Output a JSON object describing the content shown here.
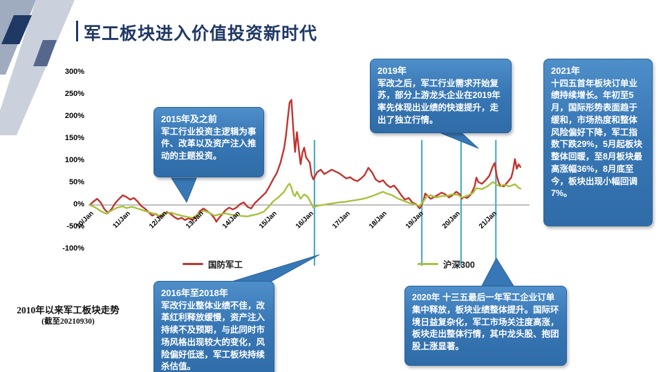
{
  "slide": {
    "title": "军工板块进入价值投资新时代",
    "caption_line1": "2010年以来军工板块走势",
    "caption_line2": "(截至20210930)"
  },
  "colors": {
    "title_navy": "#1F3864",
    "callout_blue": "#3877B5",
    "marker_teal": "#4BACC6",
    "defense_red": "#C3322E",
    "csi300_green": "#A6C13C"
  },
  "callouts": [
    {
      "title": "2015年及之前",
      "body": "军工行业投资主逻辑为事件、改革以及资产注入推动的主题投资。"
    },
    {
      "title": "2019年",
      "body": "军改之后，军工行业需求开始复苏，部分上游龙头企业在2019年率先体现出业绩的快速提升，走出了独立行情。"
    },
    {
      "title": "2021年",
      "body": "十四五首年板块订单业绩持续增长。年初至5月，国际形势表面趋于缓和，市场热度和整体风险偏好下降，军工指数下跌29%，5月起板块整体回暖，至8月板块最高涨幅36%，8月底至今，板块出现小幅回调7%。"
    },
    {
      "title": "2016年至2018年",
      "body": "军改行业整体业绩不佳，改革红利释放缓慢，资产注入持续不及预期，与此同时市场风格出现较大的变化，风险偏好低迷，军工板块持续杀估值。"
    },
    {
      "title": "2020年",
      "body": "十三五最后一年军工企业订单集中释放，板块业绩整体提升。国际环境日益复杂化，军工市场关注度高涨，板块走出整体行情，其中龙头股、抱团股上涨显著。"
    }
  ],
  "chart_data": {
    "type": "line",
    "title": "",
    "xlabel": "",
    "ylabel": "",
    "grid": false,
    "legend_position": "bottom",
    "ylim": [
      -100,
      300
    ],
    "x_range": [
      2010,
      2021.85
    ],
    "y_ticks": [
      {
        "label": "300%",
        "value": 300
      },
      {
        "label": "250%",
        "value": 250
      },
      {
        "label": "200%",
        "value": 200
      },
      {
        "label": "150%",
        "value": 150
      },
      {
        "label": "100%",
        "value": 100
      },
      {
        "label": "50%",
        "value": 50
      },
      {
        "label": "0%",
        "value": 0
      },
      {
        "label": "-50%",
        "value": -50
      },
      {
        "label": "-100%",
        "value": -100
      }
    ],
    "x_ticks": [
      {
        "label": "10/Jan",
        "year": 2010
      },
      {
        "label": "11/Jan",
        "year": 2011
      },
      {
        "label": "12/Jan",
        "year": 2012
      },
      {
        "label": "13/Jan",
        "year": 2013
      },
      {
        "label": "14/Jan",
        "year": 2014
      },
      {
        "label": "15/Jan",
        "year": 2015
      },
      {
        "label": "16/Jan",
        "year": 2016
      },
      {
        "label": "17/Jan",
        "year": 2017
      },
      {
        "label": "18/Jan",
        "year": 2018
      },
      {
        "label": "19/Jan",
        "year": 2019
      },
      {
        "label": "20/Jan",
        "year": 2020
      },
      {
        "label": "21/Jan",
        "year": 2021
      }
    ],
    "event_marker_years": [
      2016.13,
      2019.06,
      2020.13,
      2021.08
    ],
    "marker_color": "#4BACC6",
    "series": [
      {
        "id": "defense",
        "name": "国防军工",
        "color": "#C3322E",
        "points": [
          [
            2010.0,
            0
          ],
          [
            2010.1,
            8
          ],
          [
            2010.2,
            14
          ],
          [
            2010.3,
            5
          ],
          [
            2010.4,
            -10
          ],
          [
            2010.5,
            -18
          ],
          [
            2010.6,
            -8
          ],
          [
            2010.7,
            5
          ],
          [
            2010.8,
            14
          ],
          [
            2010.9,
            22
          ],
          [
            2011.0,
            18
          ],
          [
            2011.1,
            12
          ],
          [
            2011.2,
            16
          ],
          [
            2011.3,
            8
          ],
          [
            2011.4,
            -2
          ],
          [
            2011.5,
            -8
          ],
          [
            2011.6,
            -16
          ],
          [
            2011.7,
            -24
          ],
          [
            2011.8,
            -20
          ],
          [
            2011.9,
            -27
          ],
          [
            2012.0,
            -23
          ],
          [
            2012.1,
            -16
          ],
          [
            2012.2,
            -20
          ],
          [
            2012.3,
            -27
          ],
          [
            2012.4,
            -32
          ],
          [
            2012.5,
            -29
          ],
          [
            2012.6,
            -34
          ],
          [
            2012.7,
            -30
          ],
          [
            2012.8,
            -34
          ],
          [
            2012.9,
            -27
          ],
          [
            2013.0,
            -14
          ],
          [
            2013.1,
            -8
          ],
          [
            2013.2,
            -14
          ],
          [
            2013.3,
            -20
          ],
          [
            2013.4,
            -30
          ],
          [
            2013.45,
            -38
          ],
          [
            2013.5,
            -32
          ],
          [
            2013.6,
            -22
          ],
          [
            2013.7,
            -12
          ],
          [
            2013.8,
            -6
          ],
          [
            2013.9,
            -10
          ],
          [
            2014.0,
            -6
          ],
          [
            2014.1,
            2
          ],
          [
            2014.2,
            6
          ],
          [
            2014.3,
            -4
          ],
          [
            2014.4,
            -8
          ],
          [
            2014.5,
            4
          ],
          [
            2014.6,
            12
          ],
          [
            2014.7,
            20
          ],
          [
            2014.8,
            28
          ],
          [
            2014.9,
            42
          ],
          [
            2015.0,
            58
          ],
          [
            2015.1,
            72
          ],
          [
            2015.2,
            95
          ],
          [
            2015.3,
            128
          ],
          [
            2015.35,
            155
          ],
          [
            2015.4,
            195
          ],
          [
            2015.45,
            232
          ],
          [
            2015.5,
            238
          ],
          [
            2015.55,
            175
          ],
          [
            2015.6,
            120
          ],
          [
            2015.65,
            165
          ],
          [
            2015.7,
            128
          ],
          [
            2015.75,
            92
          ],
          [
            2015.8,
            118
          ],
          [
            2015.85,
            130
          ],
          [
            2015.9,
            108
          ],
          [
            2016.0,
            96
          ],
          [
            2016.05,
            68
          ],
          [
            2016.1,
            58
          ],
          [
            2016.2,
            74
          ],
          [
            2016.3,
            80
          ],
          [
            2016.4,
            70
          ],
          [
            2016.5,
            75
          ],
          [
            2016.6,
            80
          ],
          [
            2016.7,
            76
          ],
          [
            2016.8,
            72
          ],
          [
            2016.9,
            66
          ],
          [
            2017.0,
            60
          ],
          [
            2017.1,
            63
          ],
          [
            2017.2,
            57
          ],
          [
            2017.3,
            54
          ],
          [
            2017.4,
            60
          ],
          [
            2017.5,
            68
          ],
          [
            2017.6,
            84
          ],
          [
            2017.7,
            74
          ],
          [
            2017.8,
            58
          ],
          [
            2017.9,
            52
          ],
          [
            2018.0,
            56
          ],
          [
            2018.1,
            46
          ],
          [
            2018.2,
            40
          ],
          [
            2018.3,
            44
          ],
          [
            2018.4,
            34
          ],
          [
            2018.5,
            22
          ],
          [
            2018.6,
            12
          ],
          [
            2018.7,
            16
          ],
          [
            2018.8,
            6
          ],
          [
            2018.9,
            2
          ],
          [
            2019.0,
            -8
          ],
          [
            2019.1,
            8
          ],
          [
            2019.15,
            26
          ],
          [
            2019.2,
            22
          ],
          [
            2019.3,
            14
          ],
          [
            2019.4,
            18
          ],
          [
            2019.5,
            23
          ],
          [
            2019.6,
            28
          ],
          [
            2019.7,
            24
          ],
          [
            2019.8,
            17
          ],
          [
            2019.9,
            22
          ],
          [
            2020.0,
            30
          ],
          [
            2020.1,
            24
          ],
          [
            2020.15,
            14
          ],
          [
            2020.2,
            18
          ],
          [
            2020.3,
            16
          ],
          [
            2020.4,
            24
          ],
          [
            2020.5,
            42
          ],
          [
            2020.55,
            62
          ],
          [
            2020.6,
            52
          ],
          [
            2020.7,
            48
          ],
          [
            2020.8,
            56
          ],
          [
            2020.9,
            66
          ],
          [
            2021.0,
            88
          ],
          [
            2021.05,
            95
          ],
          [
            2021.1,
            68
          ],
          [
            2021.15,
            52
          ],
          [
            2021.2,
            44
          ],
          [
            2021.3,
            42
          ],
          [
            2021.4,
            52
          ],
          [
            2021.5,
            62
          ],
          [
            2021.55,
            78
          ],
          [
            2021.6,
            104
          ],
          [
            2021.65,
            82
          ],
          [
            2021.7,
            92
          ],
          [
            2021.75,
            86
          ]
        ]
      },
      {
        "id": "csi300",
        "name": "沪深300",
        "color": "#A6C13C",
        "points": [
          [
            2010.0,
            0
          ],
          [
            2010.15,
            -6
          ],
          [
            2010.3,
            -14
          ],
          [
            2010.45,
            -20
          ],
          [
            2010.6,
            -12
          ],
          [
            2010.75,
            -6
          ],
          [
            2010.9,
            -3
          ],
          [
            2011.0,
            -7
          ],
          [
            2011.15,
            -4
          ],
          [
            2011.3,
            -8
          ],
          [
            2011.45,
            -12
          ],
          [
            2011.6,
            -16
          ],
          [
            2011.75,
            -20
          ],
          [
            2011.9,
            -24
          ],
          [
            2012.05,
            -20
          ],
          [
            2012.2,
            -17
          ],
          [
            2012.35,
            -21
          ],
          [
            2012.5,
            -24
          ],
          [
            2012.65,
            -27
          ],
          [
            2012.8,
            -29
          ],
          [
            2012.95,
            -21
          ],
          [
            2013.1,
            -13
          ],
          [
            2013.25,
            -17
          ],
          [
            2013.4,
            -24
          ],
          [
            2013.55,
            -21
          ],
          [
            2013.7,
            -19
          ],
          [
            2013.85,
            -22
          ],
          [
            2014.0,
            -23
          ],
          [
            2014.15,
            -25
          ],
          [
            2014.3,
            -26
          ],
          [
            2014.45,
            -23
          ],
          [
            2014.6,
            -20
          ],
          [
            2014.75,
            -15
          ],
          [
            2014.9,
            -2
          ],
          [
            2015.0,
            8
          ],
          [
            2015.15,
            18
          ],
          [
            2015.3,
            30
          ],
          [
            2015.4,
            44
          ],
          [
            2015.45,
            48
          ],
          [
            2015.5,
            40
          ],
          [
            2015.55,
            25
          ],
          [
            2015.6,
            20
          ],
          [
            2015.65,
            30
          ],
          [
            2015.75,
            14
          ],
          [
            2015.85,
            24
          ],
          [
            2015.95,
            18
          ],
          [
            2016.05,
            2
          ],
          [
            2016.1,
            -6
          ],
          [
            2016.2,
            -2
          ],
          [
            2016.35,
            0
          ],
          [
            2016.5,
            2
          ],
          [
            2016.65,
            4
          ],
          [
            2016.8,
            6
          ],
          [
            2016.95,
            7
          ],
          [
            2017.1,
            9
          ],
          [
            2017.25,
            11
          ],
          [
            2017.4,
            13
          ],
          [
            2017.55,
            16
          ],
          [
            2017.7,
            20
          ],
          [
            2017.85,
            25
          ],
          [
            2018.0,
            30
          ],
          [
            2018.1,
            26
          ],
          [
            2018.25,
            22
          ],
          [
            2018.4,
            15
          ],
          [
            2018.55,
            10
          ],
          [
            2018.7,
            5
          ],
          [
            2018.85,
            2
          ],
          [
            2019.0,
            -2
          ],
          [
            2019.1,
            8
          ],
          [
            2019.2,
            20
          ],
          [
            2019.3,
            22
          ],
          [
            2019.45,
            17
          ],
          [
            2019.6,
            20
          ],
          [
            2019.75,
            21
          ],
          [
            2019.9,
            24
          ],
          [
            2020.05,
            23
          ],
          [
            2020.15,
            17
          ],
          [
            2020.3,
            21
          ],
          [
            2020.45,
            27
          ],
          [
            2020.55,
            38
          ],
          [
            2020.7,
            36
          ],
          [
            2020.85,
            42
          ],
          [
            2021.0,
            52
          ],
          [
            2021.1,
            46
          ],
          [
            2021.2,
            42
          ],
          [
            2021.3,
            46
          ],
          [
            2021.45,
            42
          ],
          [
            2021.6,
            47
          ],
          [
            2021.7,
            39
          ],
          [
            2021.75,
            37
          ]
        ]
      }
    ]
  }
}
